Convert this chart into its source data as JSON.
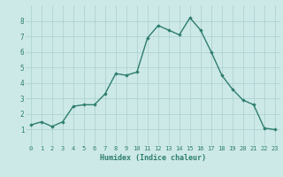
{
  "x": [
    0,
    1,
    2,
    3,
    4,
    5,
    6,
    7,
    8,
    9,
    10,
    11,
    12,
    13,
    14,
    15,
    16,
    17,
    18,
    19,
    20,
    21,
    22,
    23
  ],
  "y": [
    1.3,
    1.5,
    1.2,
    1.5,
    2.5,
    2.6,
    2.6,
    3.3,
    4.6,
    4.5,
    4.7,
    6.9,
    7.7,
    7.4,
    7.1,
    8.2,
    7.4,
    6.0,
    4.5,
    3.6,
    2.9,
    2.6,
    1.1,
    1.0
  ],
  "xlabel": "Humidex (Indice chaleur)",
  "xlim": [
    -0.5,
    23.5
  ],
  "ylim": [
    0,
    9
  ],
  "line_color": "#2e7d6e",
  "marker": "D",
  "marker_size": 1.8,
  "line_width": 1.0,
  "bg_color": "#cce9e7",
  "grid_color": "#aacfcf",
  "tick_label_color": "#2e7d6e",
  "xlabel_color": "#2e7d6e",
  "yticks": [
    1,
    2,
    3,
    4,
    5,
    6,
    7,
    8
  ],
  "xticks": [
    0,
    1,
    2,
    3,
    4,
    5,
    6,
    7,
    8,
    9,
    10,
    11,
    12,
    13,
    14,
    15,
    16,
    17,
    18,
    19,
    20,
    21,
    22,
    23
  ]
}
